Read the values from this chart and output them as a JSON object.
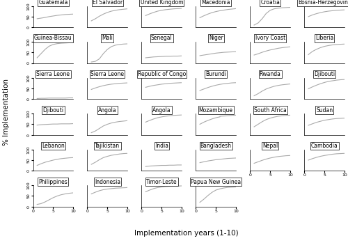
{
  "panels": [
    {
      "name": "Guatemala",
      "row": 0,
      "col": 0,
      "curve": [
        [
          1,
          40
        ],
        [
          2,
          43
        ],
        [
          3,
          46
        ],
        [
          4,
          50
        ],
        [
          5,
          53
        ],
        [
          6,
          56
        ],
        [
          7,
          58
        ],
        [
          8,
          60
        ],
        [
          9,
          61
        ],
        [
          10,
          62
        ]
      ]
    },
    {
      "name": "El Salvador",
      "row": 0,
      "col": 1,
      "curve": [
        [
          1,
          30
        ],
        [
          2,
          40
        ],
        [
          3,
          52
        ],
        [
          4,
          62
        ],
        [
          5,
          70
        ],
        [
          6,
          76
        ],
        [
          7,
          80
        ],
        [
          8,
          83
        ],
        [
          9,
          85
        ],
        [
          10,
          87
        ]
      ]
    },
    {
      "name": "United Kingdom",
      "row": 0,
      "col": 2,
      "curve": [
        [
          1,
          55
        ],
        [
          2,
          63
        ],
        [
          3,
          70
        ],
        [
          4,
          76
        ],
        [
          5,
          80
        ],
        [
          6,
          83
        ],
        [
          7,
          85
        ],
        [
          8,
          87
        ],
        [
          9,
          88
        ],
        [
          10,
          89
        ]
      ]
    },
    {
      "name": "Macedonia",
      "row": 0,
      "col": 3,
      "curve": [
        [
          1,
          45
        ],
        [
          2,
          54
        ],
        [
          3,
          62
        ],
        [
          4,
          69
        ],
        [
          5,
          74
        ],
        [
          6,
          78
        ],
        [
          7,
          81
        ],
        [
          8,
          84
        ],
        [
          9,
          86
        ],
        [
          10,
          88
        ]
      ]
    },
    {
      "name": "Croatia",
      "row": 0,
      "col": 4,
      "curve": [
        [
          1,
          10
        ],
        [
          2,
          20
        ],
        [
          3,
          40
        ],
        [
          4,
          65
        ],
        [
          5,
          80
        ],
        [
          6,
          87
        ],
        [
          7,
          90
        ],
        [
          8,
          92
        ],
        [
          9,
          93
        ],
        [
          10,
          94
        ]
      ]
    },
    {
      "name": "Bosnia-Herzegovina",
      "row": 0,
      "col": 5,
      "curve": [
        [
          1,
          50
        ],
        [
          2,
          58
        ],
        [
          3,
          64
        ],
        [
          4,
          69
        ],
        [
          5,
          73
        ],
        [
          6,
          76
        ],
        [
          7,
          78
        ],
        [
          8,
          80
        ],
        [
          9,
          81
        ],
        [
          10,
          82
        ]
      ]
    },
    {
      "name": "Guinea-Bissau",
      "row": 1,
      "col": 0,
      "curve": [
        [
          1,
          25
        ],
        [
          2,
          45
        ],
        [
          3,
          65
        ],
        [
          4,
          80
        ],
        [
          5,
          88
        ],
        [
          6,
          92
        ],
        [
          7,
          94
        ],
        [
          8,
          95
        ],
        [
          9,
          96
        ],
        [
          10,
          96
        ]
      ]
    },
    {
      "name": "Mali",
      "row": 1,
      "col": 1,
      "curve": [
        [
          1,
          5
        ],
        [
          2,
          8
        ],
        [
          3,
          20
        ],
        [
          4,
          45
        ],
        [
          5,
          65
        ],
        [
          6,
          78
        ],
        [
          7,
          85
        ],
        [
          8,
          88
        ],
        [
          9,
          90
        ],
        [
          10,
          91
        ]
      ]
    },
    {
      "name": "Senegal",
      "row": 1,
      "col": 2,
      "curve": [
        [
          1,
          25
        ],
        [
          2,
          27
        ],
        [
          3,
          29
        ],
        [
          4,
          30
        ],
        [
          5,
          31
        ],
        [
          6,
          32
        ],
        [
          7,
          32
        ],
        [
          8,
          33
        ],
        [
          9,
          33
        ],
        [
          10,
          34
        ]
      ]
    },
    {
      "name": "Niger",
      "row": 1,
      "col": 3,
      "curve": [
        [
          1,
          35
        ],
        [
          2,
          38
        ],
        [
          3,
          41
        ],
        [
          4,
          44
        ],
        [
          5,
          47
        ],
        [
          6,
          49
        ],
        [
          7,
          51
        ],
        [
          8,
          52
        ],
        [
          9,
          53
        ],
        [
          10,
          54
        ]
      ]
    },
    {
      "name": "Ivory Coast",
      "row": 1,
      "col": 4,
      "curve": [
        [
          1,
          38
        ],
        [
          2,
          44
        ],
        [
          3,
          51
        ],
        [
          4,
          57
        ],
        [
          5,
          62
        ],
        [
          6,
          66
        ],
        [
          7,
          70
        ],
        [
          8,
          73
        ],
        [
          9,
          75
        ],
        [
          10,
          77
        ]
      ]
    },
    {
      "name": "Liberia",
      "row": 1,
      "col": 5,
      "curve": [
        [
          1,
          40
        ],
        [
          2,
          55
        ],
        [
          3,
          65
        ],
        [
          4,
          73
        ],
        [
          5,
          79
        ],
        [
          6,
          83
        ],
        [
          7,
          86
        ],
        [
          8,
          88
        ],
        [
          9,
          89
        ],
        [
          10,
          90
        ]
      ]
    },
    {
      "name": "Sierra Leone",
      "row": 2,
      "col": 0,
      "curve": [
        [
          1,
          2
        ],
        [
          2,
          3
        ],
        [
          3,
          3
        ],
        [
          4,
          4
        ],
        [
          5,
          4
        ],
        [
          6,
          4
        ],
        [
          7,
          4
        ],
        [
          8,
          4
        ],
        [
          9,
          5
        ],
        [
          10,
          5
        ]
      ]
    },
    {
      "name": "Sierra Leone",
      "row": 2,
      "col": 1,
      "curve": [
        [
          1,
          45
        ],
        [
          2,
          52
        ],
        [
          3,
          58
        ],
        [
          4,
          63
        ],
        [
          5,
          67
        ],
        [
          6,
          70
        ],
        [
          7,
          72
        ],
        [
          8,
          74
        ],
        [
          9,
          75
        ],
        [
          10,
          76
        ]
      ]
    },
    {
      "name": "Republic of Congo",
      "row": 2,
      "col": 2,
      "curve": [
        [
          1,
          55
        ],
        [
          2,
          60
        ],
        [
          3,
          64
        ],
        [
          4,
          67
        ],
        [
          5,
          70
        ],
        [
          6,
          72
        ],
        [
          7,
          74
        ],
        [
          8,
          75
        ],
        [
          9,
          76
        ],
        [
          10,
          77
        ]
      ]
    },
    {
      "name": "Burundi",
      "row": 2,
      "col": 3,
      "curve": [
        [
          1,
          40
        ],
        [
          2,
          47
        ],
        [
          3,
          54
        ],
        [
          4,
          60
        ],
        [
          5,
          65
        ],
        [
          6,
          69
        ],
        [
          7,
          72
        ],
        [
          8,
          74
        ],
        [
          9,
          76
        ],
        [
          10,
          77
        ]
      ]
    },
    {
      "name": "Rwanda",
      "row": 2,
      "col": 4,
      "curve": [
        [
          1,
          15
        ],
        [
          2,
          25
        ],
        [
          3,
          37
        ],
        [
          4,
          47
        ],
        [
          5,
          54
        ],
        [
          6,
          60
        ],
        [
          7,
          64
        ],
        [
          8,
          67
        ],
        [
          9,
          69
        ],
        [
          10,
          71
        ]
      ]
    },
    {
      "name": "Djibouti",
      "row": 2,
      "col": 5,
      "curve": [
        [
          1,
          48
        ],
        [
          2,
          57
        ],
        [
          3,
          65
        ],
        [
          4,
          72
        ],
        [
          5,
          78
        ],
        [
          6,
          83
        ],
        [
          7,
          86
        ],
        [
          8,
          89
        ],
        [
          9,
          91
        ],
        [
          10,
          92
        ]
      ]
    },
    {
      "name": "Djibouti",
      "row": 3,
      "col": 0,
      "curve": [
        [
          1,
          46
        ],
        [
          2,
          48
        ],
        [
          3,
          49
        ],
        [
          4,
          50
        ],
        [
          5,
          51
        ],
        [
          6,
          51
        ],
        [
          7,
          52
        ],
        [
          8,
          52
        ],
        [
          9,
          52
        ],
        [
          10,
          53
        ]
      ]
    },
    {
      "name": "Angola",
      "row": 3,
      "col": 1,
      "curve": [
        [
          1,
          10
        ],
        [
          2,
          18
        ],
        [
          3,
          30
        ],
        [
          4,
          42
        ],
        [
          5,
          50
        ],
        [
          6,
          56
        ],
        [
          7,
          60
        ],
        [
          8,
          63
        ],
        [
          9,
          65
        ],
        [
          10,
          67
        ]
      ]
    },
    {
      "name": "Angola",
      "row": 3,
      "col": 2,
      "curve": [
        [
          1,
          60
        ],
        [
          2,
          68
        ],
        [
          3,
          75
        ],
        [
          4,
          81
        ],
        [
          5,
          85
        ],
        [
          6,
          88
        ],
        [
          7,
          90
        ],
        [
          8,
          92
        ],
        [
          9,
          93
        ],
        [
          10,
          94
        ]
      ]
    },
    {
      "name": "Mozambique",
      "row": 3,
      "col": 3,
      "curve": [
        [
          1,
          50
        ],
        [
          2,
          60
        ],
        [
          3,
          68
        ],
        [
          4,
          75
        ],
        [
          5,
          81
        ],
        [
          6,
          85
        ],
        [
          6,
          88
        ],
        [
          8,
          90
        ],
        [
          9,
          92
        ],
        [
          10,
          93
        ]
      ]
    },
    {
      "name": "South Africa",
      "row": 3,
      "col": 4,
      "curve": [
        [
          1,
          38
        ],
        [
          2,
          50
        ],
        [
          3,
          62
        ],
        [
          4,
          72
        ],
        [
          5,
          79
        ],
        [
          6,
          84
        ],
        [
          7,
          88
        ],
        [
          8,
          90
        ],
        [
          9,
          92
        ],
        [
          10,
          93
        ]
      ]
    },
    {
      "name": "Sudan",
      "row": 3,
      "col": 5,
      "curve": [
        [
          1,
          45
        ],
        [
          2,
          52
        ],
        [
          3,
          59
        ],
        [
          4,
          64
        ],
        [
          5,
          69
        ],
        [
          6,
          72
        ],
        [
          7,
          75
        ],
        [
          8,
          77
        ],
        [
          9,
          78
        ],
        [
          10,
          79
        ]
      ]
    },
    {
      "name": "Lebanon",
      "row": 4,
      "col": 0,
      "curve": [
        [
          1,
          25
        ],
        [
          2,
          33
        ],
        [
          3,
          40
        ],
        [
          4,
          45
        ],
        [
          5,
          50
        ],
        [
          6,
          54
        ],
        [
          7,
          57
        ],
        [
          8,
          59
        ],
        [
          9,
          61
        ],
        [
          10,
          62
        ]
      ]
    },
    {
      "name": "Tajikistan",
      "row": 4,
      "col": 1,
      "curve": [
        [
          1,
          30
        ],
        [
          2,
          40
        ],
        [
          3,
          52
        ],
        [
          4,
          62
        ],
        [
          5,
          68
        ],
        [
          6,
          73
        ],
        [
          7,
          76
        ],
        [
          8,
          79
        ],
        [
          9,
          81
        ],
        [
          10,
          82
        ]
      ]
    },
    {
      "name": "India",
      "row": 4,
      "col": 2,
      "curve": [
        [
          1,
          20
        ],
        [
          2,
          22
        ],
        [
          3,
          23
        ],
        [
          4,
          24
        ],
        [
          5,
          25
        ],
        [
          6,
          25
        ],
        [
          7,
          26
        ],
        [
          8,
          26
        ],
        [
          9,
          27
        ],
        [
          10,
          27
        ]
      ]
    },
    {
      "name": "Bangladesh",
      "row": 4,
      "col": 3,
      "curve": [
        [
          1,
          38
        ],
        [
          2,
          42
        ],
        [
          3,
          46
        ],
        [
          4,
          49
        ],
        [
          5,
          52
        ],
        [
          6,
          54
        ],
        [
          7,
          56
        ],
        [
          8,
          58
        ],
        [
          9,
          59
        ],
        [
          10,
          60
        ]
      ]
    },
    {
      "name": "Nepal",
      "row": 4,
      "col": 4,
      "curve": [
        [
          1,
          35
        ],
        [
          2,
          42
        ],
        [
          3,
          49
        ],
        [
          4,
          55
        ],
        [
          5,
          60
        ],
        [
          6,
          64
        ],
        [
          7,
          67
        ],
        [
          8,
          69
        ],
        [
          9,
          71
        ],
        [
          10,
          72
        ]
      ]
    },
    {
      "name": "Cambodia",
      "row": 4,
      "col": 5,
      "curve": [
        [
          1,
          50
        ],
        [
          2,
          57
        ],
        [
          3,
          63
        ],
        [
          4,
          68
        ],
        [
          5,
          72
        ],
        [
          6,
          75
        ],
        [
          7,
          78
        ],
        [
          8,
          80
        ],
        [
          9,
          81
        ],
        [
          10,
          82
        ]
      ]
    },
    {
      "name": "Philippines",
      "row": 5,
      "col": 0,
      "curve": [
        [
          1,
          10
        ],
        [
          2,
          14
        ],
        [
          3,
          22
        ],
        [
          4,
          32
        ],
        [
          5,
          42
        ],
        [
          6,
          50
        ],
        [
          7,
          56
        ],
        [
          8,
          60
        ],
        [
          9,
          63
        ],
        [
          10,
          65
        ]
      ]
    },
    {
      "name": "Indonesia",
      "row": 5,
      "col": 1,
      "curve": [
        [
          1,
          60
        ],
        [
          2,
          68
        ],
        [
          3,
          75
        ],
        [
          4,
          80
        ],
        [
          5,
          83
        ],
        [
          6,
          85
        ],
        [
          7,
          87
        ],
        [
          8,
          88
        ],
        [
          9,
          89
        ],
        [
          10,
          90
        ]
      ]
    },
    {
      "name": "Timor-Leste",
      "row": 5,
      "col": 2,
      "curve": [
        [
          1,
          70
        ],
        [
          2,
          78
        ],
        [
          3,
          85
        ],
        [
          4,
          90
        ],
        [
          5,
          93
        ],
        [
          6,
          95
        ],
        [
          7,
          96
        ],
        [
          8,
          97
        ],
        [
          9,
          97
        ],
        [
          10,
          98
        ]
      ]
    },
    {
      "name": "Papua New Guinea",
      "row": 5,
      "col": 3,
      "curve": [
        [
          1,
          20
        ],
        [
          2,
          35
        ],
        [
          3,
          52
        ],
        [
          4,
          67
        ],
        [
          5,
          78
        ],
        [
          6,
          84
        ],
        [
          7,
          88
        ],
        [
          8,
          91
        ],
        [
          9,
          92
        ],
        [
          10,
          93
        ]
      ]
    }
  ],
  "nrows": 6,
  "ncols": 6,
  "last_row_ncols": 4,
  "xlabel": "Implementation years (1-10)",
  "ylabel": "% Implementation",
  "xlim": [
    0,
    10
  ],
  "ylim": [
    0,
    100
  ],
  "xticks": [
    0,
    5,
    10
  ],
  "yticks": [
    0,
    50,
    100
  ],
  "line_color": "#aaaaaa",
  "line_width": 0.8,
  "bg_color": "#ffffff",
  "title_fontsize": 5.5,
  "axis_fontsize": 4.5,
  "xlabel_fontsize": 7.5,
  "ylabel_fontsize": 7.5
}
